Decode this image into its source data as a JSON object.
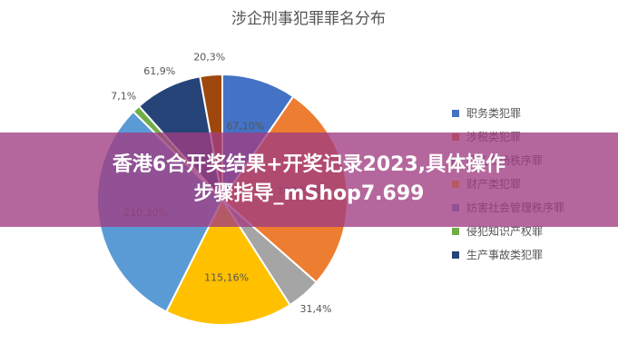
{
  "chart_data": {
    "type": "pie",
    "title": "涉企刑事犯罪罪名分布",
    "slices": [
      {
        "name": "职务类犯罪",
        "label": "67,10%",
        "value": 67,
        "percent": 10,
        "color": "#4472c4"
      },
      {
        "name": "涉税类犯罪",
        "label": "188,27%",
        "value": 188,
        "percent": 27,
        "color": "#ed7d31"
      },
      {
        "name": "扰乱市场秩序罪",
        "label": "31,4%",
        "value": 31,
        "percent": 4,
        "color": "#a5a5a5"
      },
      {
        "name": "财产类犯罪",
        "label": "115,16%",
        "value": 115,
        "percent": 16,
        "color": "#ffc000"
      },
      {
        "name": "妨害社会管理秩序罪",
        "label": "210,30%",
        "value": 210,
        "percent": 30,
        "color": "#5b9bd5"
      },
      {
        "name": "侵犯知识产权罪",
        "label": "7,1%",
        "value": 7,
        "percent": 1,
        "color": "#70ad47"
      },
      {
        "name": "生产事故类犯罪",
        "label": "61,9%",
        "value": 61,
        "percent": 9,
        "color": "#264478"
      },
      {
        "name": "",
        "label": "20,3%",
        "value": 20,
        "percent": 3,
        "color": "#9e480e"
      }
    ],
    "legend_position": "right"
  },
  "banner": {
    "line1": "香港6合开奖结果+开奖记录2023,具体操作",
    "line2": "步骤指导_mShop7.699"
  }
}
